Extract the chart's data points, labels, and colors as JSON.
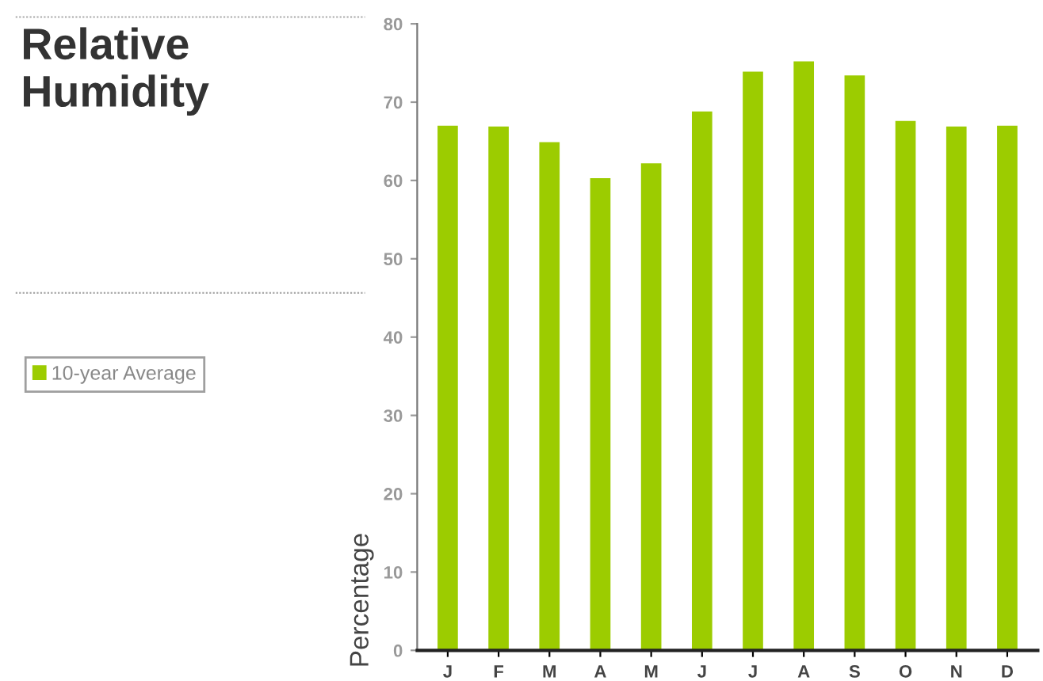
{
  "chart_data": {
    "type": "bar",
    "title": "Relative\nHumidity",
    "ylabel": "Percentage",
    "categories": [
      "J",
      "F",
      "M",
      "A",
      "M",
      "J",
      "J",
      "A",
      "S",
      "O",
      "N",
      "D"
    ],
    "series": [
      {
        "name": "10-year Average",
        "color": "#9ccc00",
        "values": [
          67.0,
          66.9,
          64.9,
          60.3,
          62.2,
          68.8,
          73.9,
          75.2,
          73.4,
          67.6,
          66.9,
          67.0
        ]
      }
    ],
    "ylim": [
      0,
      80
    ],
    "yticks": [
      0,
      10,
      20,
      30,
      40,
      50,
      60,
      70,
      80
    ],
    "grid": false,
    "legend": "left"
  }
}
